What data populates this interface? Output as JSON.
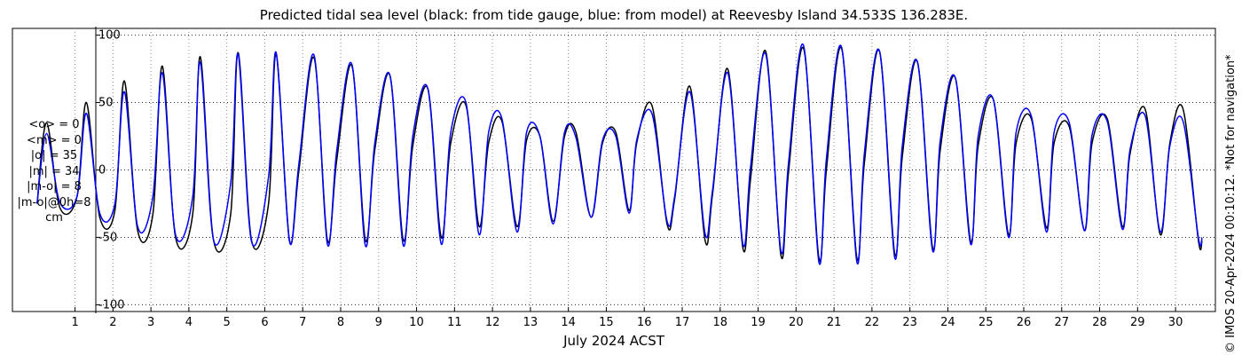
{
  "chart_data": {
    "type": "line",
    "title": "Predicted tidal sea level (black: from tide gauge, blue: from model) at Reevesby Island 34.533S 136.283E.",
    "xlabel": "July 2024 ACST",
    "ylabel": "",
    "xlim": [
      -0.65,
      31.05
    ],
    "ylim": [
      -105,
      105
    ],
    "yticks": [
      -100,
      -50,
      0,
      50,
      100
    ],
    "ytick_labels": [
      "-100",
      "-50",
      "0",
      "50",
      "100"
    ],
    "xticks": [
      1,
      2,
      3,
      4,
      5,
      6,
      7,
      8,
      9,
      10,
      11,
      12,
      13,
      14,
      15,
      16,
      17,
      18,
      19,
      20,
      21,
      22,
      23,
      24,
      25,
      26,
      27,
      28,
      29,
      30
    ],
    "xtick_labels": [
      "1",
      "2",
      "3",
      "4",
      "5",
      "6",
      "7",
      "8",
      "9",
      "10",
      "11",
      "12",
      "13",
      "14",
      "15",
      "16",
      "17",
      "18",
      "19",
      "20",
      "21",
      "22",
      "23",
      "24",
      "25",
      "26",
      "27",
      "28",
      "29",
      "30"
    ],
    "grid": true,
    "x_units": "day of month",
    "series": [
      {
        "color": "#000000",
        "points": [
          [
            0.0,
            -25
          ],
          [
            0.25,
            35
          ],
          [
            0.6,
            -28
          ],
          [
            1.05,
            -20
          ],
          [
            1.3,
            50
          ],
          [
            1.65,
            -35
          ],
          [
            2.05,
            -30
          ],
          [
            2.3,
            66
          ],
          [
            2.65,
            -45
          ],
          [
            3.05,
            -33
          ],
          [
            3.3,
            77
          ],
          [
            3.65,
            -50
          ],
          [
            4.1,
            -33
          ],
          [
            4.3,
            84
          ],
          [
            4.65,
            -52
          ],
          [
            5.1,
            -33
          ],
          [
            5.3,
            87
          ],
          [
            5.65,
            -52
          ],
          [
            6.1,
            -25
          ],
          [
            6.3,
            86
          ],
          [
            6.65,
            -52
          ],
          [
            6.9,
            0
          ],
          [
            7.3,
            83
          ],
          [
            7.65,
            -52
          ],
          [
            7.9,
            8
          ],
          [
            8.3,
            77
          ],
          [
            8.65,
            -52
          ],
          [
            8.9,
            15
          ],
          [
            9.3,
            70
          ],
          [
            9.65,
            -52
          ],
          [
            9.9,
            18
          ],
          [
            10.3,
            60
          ],
          [
            10.65,
            -50
          ],
          [
            10.9,
            20
          ],
          [
            11.3,
            48
          ],
          [
            11.65,
            -42
          ],
          [
            11.9,
            20
          ],
          [
            12.25,
            36
          ],
          [
            12.65,
            -42
          ],
          [
            12.9,
            22
          ],
          [
            13.25,
            25
          ],
          [
            13.6,
            -38
          ],
          [
            13.9,
            25
          ],
          [
            14.2,
            28
          ],
          [
            14.6,
            -35
          ],
          [
            14.9,
            20
          ],
          [
            15.25,
            28
          ],
          [
            15.6,
            -30
          ],
          [
            15.8,
            20
          ],
          [
            16.2,
            48
          ],
          [
            16.6,
            -40
          ],
          [
            16.8,
            -22
          ],
          [
            17.2,
            62
          ],
          [
            17.6,
            -52
          ],
          [
            17.8,
            -18
          ],
          [
            18.2,
            75
          ],
          [
            18.6,
            -58
          ],
          [
            18.8,
            -7
          ],
          [
            19.2,
            88
          ],
          [
            19.6,
            -63
          ],
          [
            19.8,
            -2
          ],
          [
            20.2,
            90
          ],
          [
            20.6,
            -65
          ],
          [
            20.8,
            0
          ],
          [
            21.2,
            90
          ],
          [
            21.6,
            -65
          ],
          [
            21.8,
            5
          ],
          [
            22.2,
            88
          ],
          [
            22.6,
            -62
          ],
          [
            22.8,
            10
          ],
          [
            23.2,
            80
          ],
          [
            23.6,
            -58
          ],
          [
            23.8,
            15
          ],
          [
            24.2,
            68
          ],
          [
            24.6,
            -53
          ],
          [
            24.8,
            18
          ],
          [
            25.2,
            52
          ],
          [
            25.6,
            -48
          ],
          [
            25.8,
            20
          ],
          [
            26.2,
            38
          ],
          [
            26.6,
            -43
          ],
          [
            26.8,
            20
          ],
          [
            27.2,
            32
          ],
          [
            27.6,
            -45
          ],
          [
            27.8,
            20
          ],
          [
            28.2,
            38
          ],
          [
            28.6,
            -42
          ],
          [
            28.8,
            12
          ],
          [
            29.2,
            45
          ],
          [
            29.6,
            -48
          ],
          [
            29.85,
            20
          ],
          [
            30.2,
            45
          ],
          [
            30.6,
            -52
          ],
          [
            30.7,
            -52
          ]
        ]
      },
      {
        "color": "#0000ff",
        "points": [
          [
            0.0,
            -25
          ],
          [
            0.25,
            27
          ],
          [
            0.6,
            -24
          ],
          [
            1.05,
            -20
          ],
          [
            1.3,
            42
          ],
          [
            1.65,
            -32
          ],
          [
            2.05,
            -25
          ],
          [
            2.3,
            58
          ],
          [
            2.65,
            -42
          ],
          [
            3.05,
            -20
          ],
          [
            3.3,
            72
          ],
          [
            3.65,
            -48
          ],
          [
            4.1,
            -20
          ],
          [
            4.3,
            80
          ],
          [
            4.65,
            -52
          ],
          [
            5.1,
            -10
          ],
          [
            5.3,
            86
          ],
          [
            5.65,
            -53
          ],
          [
            6.1,
            -5
          ],
          [
            6.3,
            87
          ],
          [
            6.65,
            -53
          ],
          [
            6.9,
            5
          ],
          [
            7.3,
            85
          ],
          [
            7.65,
            -55
          ],
          [
            7.9,
            15
          ],
          [
            8.3,
            78
          ],
          [
            8.65,
            -56
          ],
          [
            8.9,
            20
          ],
          [
            9.3,
            70
          ],
          [
            9.65,
            -56
          ],
          [
            9.9,
            25
          ],
          [
            10.3,
            60
          ],
          [
            10.65,
            -55
          ],
          [
            10.9,
            28
          ],
          [
            11.3,
            50
          ],
          [
            11.65,
            -48
          ],
          [
            11.9,
            28
          ],
          [
            12.25,
            38
          ],
          [
            12.65,
            -46
          ],
          [
            12.9,
            28
          ],
          [
            13.25,
            25
          ],
          [
            13.6,
            -40
          ],
          [
            13.9,
            28
          ],
          [
            14.2,
            24
          ],
          [
            14.6,
            -35
          ],
          [
            14.9,
            22
          ],
          [
            15.25,
            25
          ],
          [
            15.6,
            -32
          ],
          [
            15.8,
            22
          ],
          [
            16.2,
            42
          ],
          [
            16.6,
            -38
          ],
          [
            16.8,
            -20
          ],
          [
            17.2,
            58
          ],
          [
            17.6,
            -47
          ],
          [
            17.8,
            -15
          ],
          [
            18.2,
            72
          ],
          [
            18.6,
            -55
          ],
          [
            18.8,
            2
          ],
          [
            19.2,
            86
          ],
          [
            19.6,
            -60
          ],
          [
            19.8,
            5
          ],
          [
            20.2,
            92
          ],
          [
            20.6,
            -68
          ],
          [
            20.8,
            8
          ],
          [
            21.2,
            91
          ],
          [
            21.6,
            -68
          ],
          [
            21.8,
            12
          ],
          [
            22.2,
            88
          ],
          [
            22.6,
            -65
          ],
          [
            22.8,
            18
          ],
          [
            23.2,
            80
          ],
          [
            23.6,
            -60
          ],
          [
            23.8,
            22
          ],
          [
            24.2,
            68
          ],
          [
            24.6,
            -55
          ],
          [
            24.8,
            25
          ],
          [
            25.2,
            52
          ],
          [
            25.6,
            -50
          ],
          [
            25.8,
            28
          ],
          [
            26.2,
            40
          ],
          [
            26.6,
            -46
          ],
          [
            26.8,
            28
          ],
          [
            27.2,
            35
          ],
          [
            27.6,
            -45
          ],
          [
            27.8,
            26
          ],
          [
            28.2,
            36
          ],
          [
            28.6,
            -44
          ],
          [
            28.8,
            15
          ],
          [
            29.2,
            40
          ],
          [
            29.6,
            -46
          ],
          [
            29.85,
            18
          ],
          [
            30.2,
            36
          ],
          [
            30.6,
            -50
          ],
          [
            30.7,
            -50
          ]
        ]
      }
    ],
    "stats": [
      "<o> = 0",
      "<m> = 0",
      "|o| = 35",
      "|m| = 34",
      "|m-o| = 8",
      "|m-o|@0h=8",
      "cm"
    ],
    "copyright": "© IMOS 20-Apr-2024 00:10:12. *Not for navigation*"
  }
}
